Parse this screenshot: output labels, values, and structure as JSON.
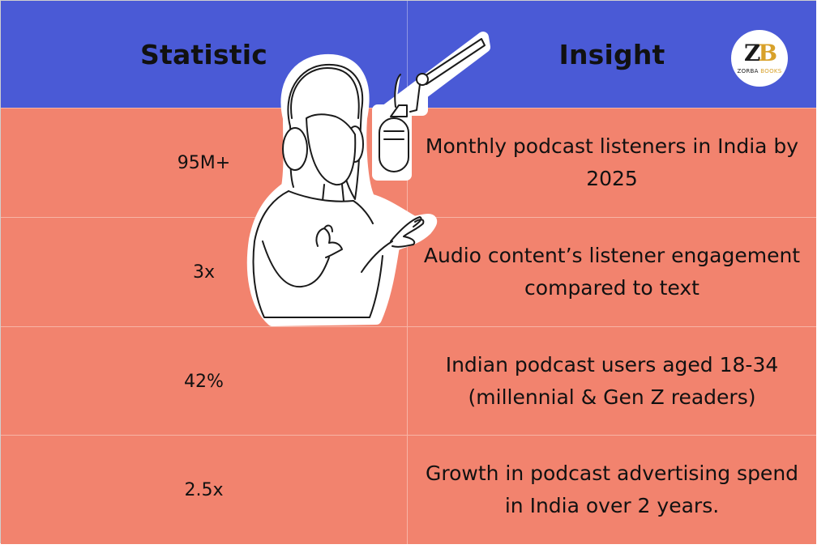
{
  "table": {
    "headers": [
      "Statistic",
      "Insight"
    ],
    "rows": [
      {
        "statistic": "95M+",
        "insight": "Monthly podcast listeners in India by 2025"
      },
      {
        "statistic": "3x",
        "insight": "Audio content’s listener engagement compared to text"
      },
      {
        "statistic": "42%",
        "insight": "Indian podcast users aged 18-34 (millennial & Gen Z readers)"
      },
      {
        "statistic": "2.5x",
        "insight": "Growth in podcast advertising spend in India over 2 years."
      }
    ]
  },
  "logo": {
    "mark_z": "Z",
    "mark_b": "B",
    "text_a": "ZORBA",
    "text_b": "BOOKS"
  },
  "colors": {
    "header_bg": "#4a5ad6",
    "row_bg": "#f2836e",
    "logo_accent": "#d8a12a"
  },
  "illustration": {
    "icon": "podcaster-with-microphone-icon"
  }
}
